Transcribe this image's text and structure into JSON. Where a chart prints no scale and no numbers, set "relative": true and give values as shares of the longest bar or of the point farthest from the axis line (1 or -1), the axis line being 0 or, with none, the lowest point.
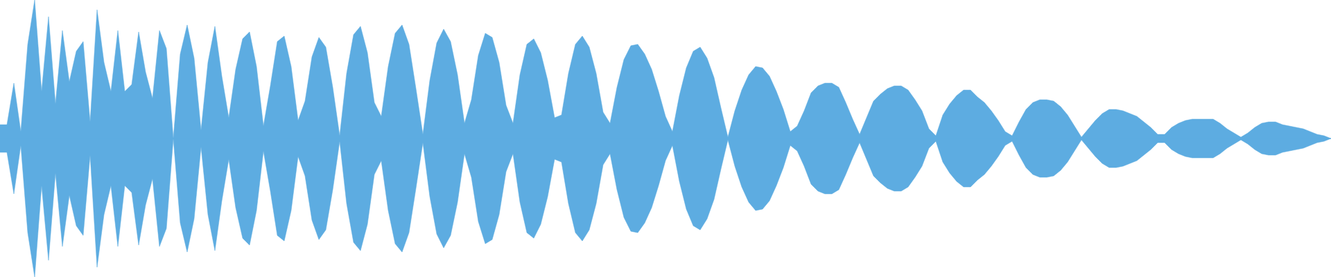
{
  "chart_data": {
    "type": "area",
    "relative": true,
    "ref_lines": [
      {
        "axis": "y",
        "value": 0,
        "color": "#5dace1"
      }
    ],
    "categories": [
      null,
      null,
      null,
      null,
      null,
      null,
      null,
      null,
      null,
      null,
      null,
      null,
      null,
      null,
      null,
      null,
      null,
      null,
      null,
      null,
      null,
      null,
      null,
      null,
      null,
      null,
      null,
      null,
      null,
      null,
      null,
      null,
      null,
      null,
      null,
      null,
      null,
      null,
      null,
      null,
      null,
      null,
      null,
      null,
      null,
      null,
      null,
      null,
      null,
      null,
      null,
      null,
      null,
      null,
      null,
      null,
      null,
      null,
      null,
      null,
      null,
      null,
      null,
      null,
      null,
      null,
      null,
      null,
      null,
      null,
      null,
      null,
      null,
      null,
      null,
      null,
      null,
      null,
      null,
      null,
      null,
      null,
      null,
      null,
      null,
      null,
      null,
      null,
      null,
      null,
      null,
      null,
      null,
      null,
      null,
      null,
      null,
      null,
      null,
      null,
      null,
      null,
      null,
      null,
      null,
      null,
      null,
      null,
      null,
      null,
      null,
      null,
      null,
      null,
      null,
      null,
      null,
      null,
      null,
      null,
      null,
      null,
      null,
      null,
      null,
      null,
      null,
      null,
      null,
      null,
      null,
      null,
      null,
      null,
      null,
      null,
      null,
      null,
      null,
      null,
      null,
      null,
      null,
      null,
      null,
      null,
      null,
      null,
      null,
      null,
      null,
      null,
      null,
      null,
      null,
      null,
      null,
      null,
      null,
      null,
      null,
      null,
      null,
      null,
      null,
      null,
      null,
      null,
      null,
      null,
      null,
      null,
      null,
      null,
      null,
      null,
      null,
      null,
      null,
      null,
      null,
      null,
      null,
      null,
      null,
      null,
      null,
      null,
      null,
      null,
      null,
      null,
      null
    ],
    "series": [
      {
        "color": "#5dace1",
        "values": [
          0.1,
          0.1,
          0.4,
          0.05,
          0.68,
          1,
          0.34,
          0.88,
          0.25,
          0.78,
          0.41,
          0.63,
          0.7,
          0.12,
          0.93,
          0.55,
          0.34,
          0.78,
          0.34,
          0.39,
          0.77,
          0.48,
          0.29,
          0.78,
          0.65,
          0,
          0.61,
          0.82,
          0.58,
          0.06,
          0.55,
          0.81,
          0.45,
          0.15,
          0.5,
          0.72,
          0.77,
          0.52,
          0.09,
          0.38,
          0.7,
          0.74,
          0.52,
          0.13,
          0.27,
          0.59,
          0.73,
          0.66,
          0.37,
          0.02,
          0.47,
          0.75,
          0.81,
          0.62,
          0.26,
          0.16,
          0.52,
          0.76,
          0.82,
          0.68,
          0.36,
          0.03,
          0.42,
          0.69,
          0.79,
          0.7,
          0.46,
          0.11,
          0.28,
          0.6,
          0.76,
          0.73,
          0.55,
          0.24,
          0.11,
          0.46,
          0.68,
          0.72,
          0.62,
          0.42,
          0.15,
          0.17,
          0.47,
          0.68,
          0.74,
          0.66,
          0.47,
          0.19,
          0.11,
          0.37,
          0.57,
          0.67,
          0.68,
          0.61,
          0.5,
          0.34,
          0.16,
          0.05,
          0.31,
          0.51,
          0.63,
          0.66,
          0.58,
          0.44,
          0.22,
          0.01,
          0.2,
          0.35,
          0.46,
          0.52,
          0.51,
          0.45,
          0.34,
          0.21,
          0.05,
          0.09,
          0.2,
          0.33,
          0.38,
          0.4,
          0.4,
          0.37,
          0.26,
          0.14,
          0.03,
          0.15,
          0.27,
          0.32,
          0.36,
          0.38,
          0.38,
          0.35,
          0.28,
          0.2,
          0.07,
          0.02,
          0.17,
          0.25,
          0.31,
          0.35,
          0.35,
          0.3,
          0.26,
          0.2,
          0.13,
          0.05,
          0.02,
          0.12,
          0.21,
          0.26,
          0.28,
          0.28,
          0.27,
          0.23,
          0.17,
          0.09,
          0.01,
          0.07,
          0.13,
          0.18,
          0.21,
          0.21,
          0.2,
          0.18,
          0.16,
          0.12,
          0.08,
          0.03,
          0.03,
          0.08,
          0.11,
          0.13,
          0.14,
          0.14,
          0.14,
          0.14,
          0.11,
          0.07,
          0.04,
          0.01,
          0.04,
          0.08,
          0.11,
          0.12,
          0.12,
          0.1,
          0.09,
          0.08,
          0.07,
          0.05,
          0.03,
          0.02,
          0
        ]
      },
      {
        "color": "#5dace1",
        "values": [
          -0.1,
          -0.1,
          -0.4,
          -0.05,
          -0.68,
          -1,
          -0.34,
          -0.88,
          -0.25,
          -0.78,
          -0.41,
          -0.63,
          -0.7,
          -0.12,
          -0.93,
          -0.55,
          -0.34,
          -0.78,
          -0.34,
          -0.39,
          -0.77,
          -0.48,
          -0.29,
          -0.78,
          -0.65,
          0,
          -0.61,
          -0.82,
          -0.58,
          -0.06,
          -0.55,
          -0.81,
          -0.45,
          -0.15,
          -0.5,
          -0.72,
          -0.77,
          -0.52,
          -0.09,
          -0.38,
          -0.7,
          -0.74,
          -0.52,
          -0.13,
          -0.27,
          -0.59,
          -0.73,
          -0.66,
          -0.37,
          -0.02,
          -0.47,
          -0.75,
          -0.81,
          -0.62,
          -0.26,
          -0.16,
          -0.52,
          -0.76,
          -0.82,
          -0.68,
          -0.36,
          -0.03,
          -0.42,
          -0.69,
          -0.79,
          -0.7,
          -0.46,
          -0.11,
          -0.28,
          -0.6,
          -0.76,
          -0.73,
          -0.55,
          -0.24,
          -0.11,
          -0.46,
          -0.68,
          -0.72,
          -0.62,
          -0.42,
          -0.15,
          -0.17,
          -0.47,
          -0.68,
          -0.74,
          -0.66,
          -0.47,
          -0.19,
          -0.11,
          -0.37,
          -0.57,
          -0.67,
          -0.68,
          -0.61,
          -0.5,
          -0.34,
          -0.16,
          -0.05,
          -0.31,
          -0.51,
          -0.63,
          -0.66,
          -0.58,
          -0.44,
          -0.22,
          -0.01,
          -0.2,
          -0.35,
          -0.46,
          -0.52,
          -0.51,
          -0.45,
          -0.34,
          -0.21,
          -0.05,
          -0.09,
          -0.2,
          -0.33,
          -0.38,
          -0.4,
          -0.4,
          -0.37,
          -0.26,
          -0.14,
          -0.03,
          -0.15,
          -0.27,
          -0.32,
          -0.36,
          -0.38,
          -0.38,
          -0.35,
          -0.28,
          -0.2,
          -0.07,
          -0.02,
          -0.17,
          -0.25,
          -0.31,
          -0.35,
          -0.35,
          -0.3,
          -0.26,
          -0.2,
          -0.13,
          -0.05,
          -0.02,
          -0.12,
          -0.21,
          -0.26,
          -0.28,
          -0.28,
          -0.27,
          -0.23,
          -0.17,
          -0.09,
          -0.01,
          -0.07,
          -0.13,
          -0.18,
          -0.21,
          -0.21,
          -0.2,
          -0.18,
          -0.16,
          -0.12,
          -0.08,
          -0.03,
          -0.03,
          -0.08,
          -0.11,
          -0.13,
          -0.14,
          -0.14,
          -0.14,
          -0.14,
          -0.11,
          -0.07,
          -0.04,
          -0.01,
          -0.04,
          -0.08,
          -0.11,
          -0.12,
          -0.12,
          -0.1,
          -0.09,
          -0.08,
          -0.07,
          -0.05,
          -0.03,
          -0.02,
          0
        ]
      }
    ]
  }
}
